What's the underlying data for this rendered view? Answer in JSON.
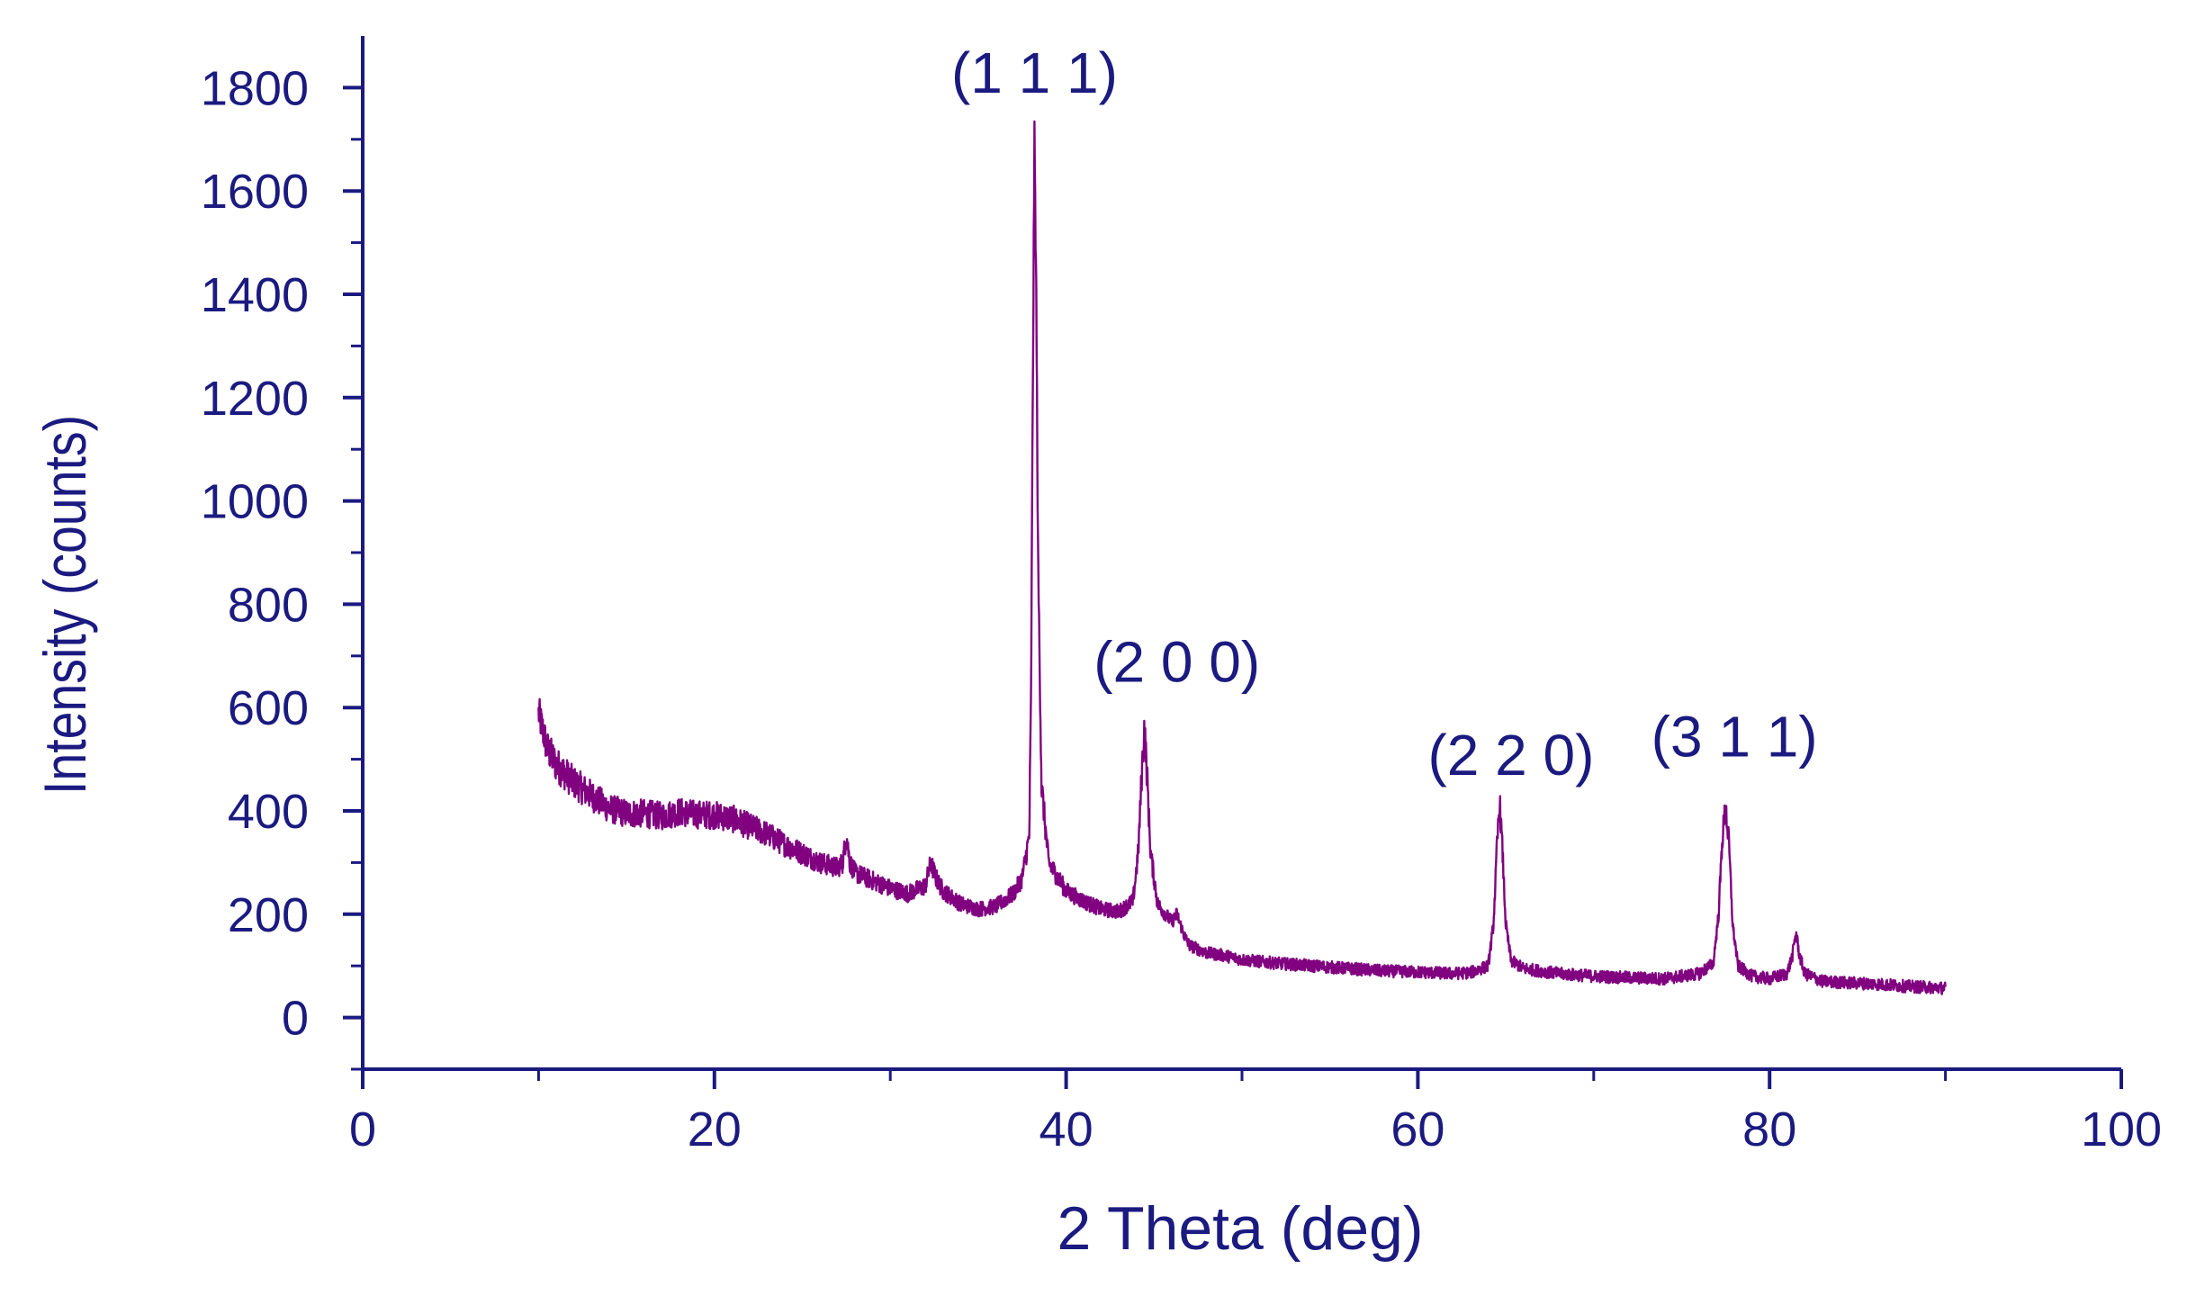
{
  "colors": {
    "axis": "#1a1a80",
    "series": "#800080",
    "background": "#ffffff"
  },
  "chart_data": {
    "type": "line",
    "title": "",
    "xlabel": "2 Theta (deg)",
    "ylabel": "Intensity (counts)",
    "xlim": [
      0,
      100
    ],
    "ylim": [
      -100,
      1900
    ],
    "x_ticks": [
      0,
      20,
      40,
      60,
      80,
      100
    ],
    "x_tick_labels": [
      "0",
      "20",
      "40",
      "60",
      "80",
      "100"
    ],
    "y_ticks": [
      0,
      200,
      400,
      600,
      800,
      1000,
      1200,
      1400,
      1600,
      1800
    ],
    "y_tick_labels": [
      "0",
      "200",
      "400",
      "600",
      "800",
      "1000",
      "1200",
      "1400",
      "1600",
      "1800"
    ],
    "grid": false,
    "legend": "none",
    "annotations": [
      {
        "text": "(1 1 1)",
        "x": 38.2,
        "y": 1790
      },
      {
        "text": "(2 0 0)",
        "x": 46.3,
        "y": 650
      },
      {
        "text": "(2 2 0)",
        "x": 65.3,
        "y": 470
      },
      {
        "text": "(3 1 1)",
        "x": 78.0,
        "y": 505
      }
    ],
    "series": [
      {
        "values": [
          [
            10.0,
            590
          ],
          [
            10.5,
            520
          ],
          [
            11,
            490
          ],
          [
            12,
            455
          ],
          [
            13,
            430
          ],
          [
            14,
            405
          ],
          [
            15,
            395
          ],
          [
            16,
            395
          ],
          [
            17,
            390
          ],
          [
            18,
            398
          ],
          [
            19,
            393
          ],
          [
            20,
            392
          ],
          [
            21,
            385
          ],
          [
            22,
            370
          ],
          [
            23,
            355
          ],
          [
            24,
            335
          ],
          [
            25,
            318
          ],
          [
            26,
            300
          ],
          [
            27,
            290
          ],
          [
            27.3,
            300
          ],
          [
            27.5,
            355
          ],
          [
            27.7,
            300
          ],
          [
            28,
            280
          ],
          [
            29,
            265
          ],
          [
            30,
            250
          ],
          [
            31,
            240
          ],
          [
            32,
            255
          ],
          [
            32.3,
            300
          ],
          [
            32.6,
            270
          ],
          [
            33,
            245
          ],
          [
            34,
            220
          ],
          [
            35,
            210
          ],
          [
            36,
            215
          ],
          [
            37,
            240
          ],
          [
            37.5,
            270
          ],
          [
            37.9,
            350
          ],
          [
            38.0,
            600
          ],
          [
            38.1,
            1200
          ],
          [
            38.2,
            1700
          ],
          [
            38.3,
            1400
          ],
          [
            38.4,
            900
          ],
          [
            38.6,
            450
          ],
          [
            39,
            300
          ],
          [
            40,
            245
          ],
          [
            41,
            225
          ],
          [
            42,
            210
          ],
          [
            43,
            205
          ],
          [
            43.8,
            225
          ],
          [
            44.1,
            320
          ],
          [
            44.3,
            470
          ],
          [
            44.45,
            565
          ],
          [
            44.6,
            470
          ],
          [
            44.8,
            320
          ],
          [
            45.2,
            220
          ],
          [
            46,
            185
          ],
          [
            46.3,
            200
          ],
          [
            46.7,
            160
          ],
          [
            47,
            140
          ],
          [
            48,
            125
          ],
          [
            49,
            120
          ],
          [
            50,
            112
          ],
          [
            52,
            105
          ],
          [
            54,
            100
          ],
          [
            56,
            95
          ],
          [
            58,
            90
          ],
          [
            60,
            88
          ],
          [
            62,
            85
          ],
          [
            63,
            87
          ],
          [
            64,
            100
          ],
          [
            64.3,
            180
          ],
          [
            64.5,
            330
          ],
          [
            64.65,
            420
          ],
          [
            64.8,
            330
          ],
          [
            65.0,
            180
          ],
          [
            65.3,
            110
          ],
          [
            66,
            95
          ],
          [
            68,
            85
          ],
          [
            70,
            80
          ],
          [
            72,
            77
          ],
          [
            74,
            75
          ],
          [
            76,
            85
          ],
          [
            76.8,
            105
          ],
          [
            77.1,
            200
          ],
          [
            77.3,
            340
          ],
          [
            77.5,
            410
          ],
          [
            77.7,
            330
          ],
          [
            77.9,
            180
          ],
          [
            78.2,
            100
          ],
          [
            79,
            80
          ],
          [
            80,
            75
          ],
          [
            81,
            85
          ],
          [
            81.3,
            120
          ],
          [
            81.5,
            165
          ],
          [
            81.7,
            120
          ],
          [
            82,
            85
          ],
          [
            83,
            70
          ],
          [
            84,
            68
          ],
          [
            86,
            65
          ],
          [
            88,
            60
          ],
          [
            90,
            57
          ]
        ]
      }
    ]
  }
}
